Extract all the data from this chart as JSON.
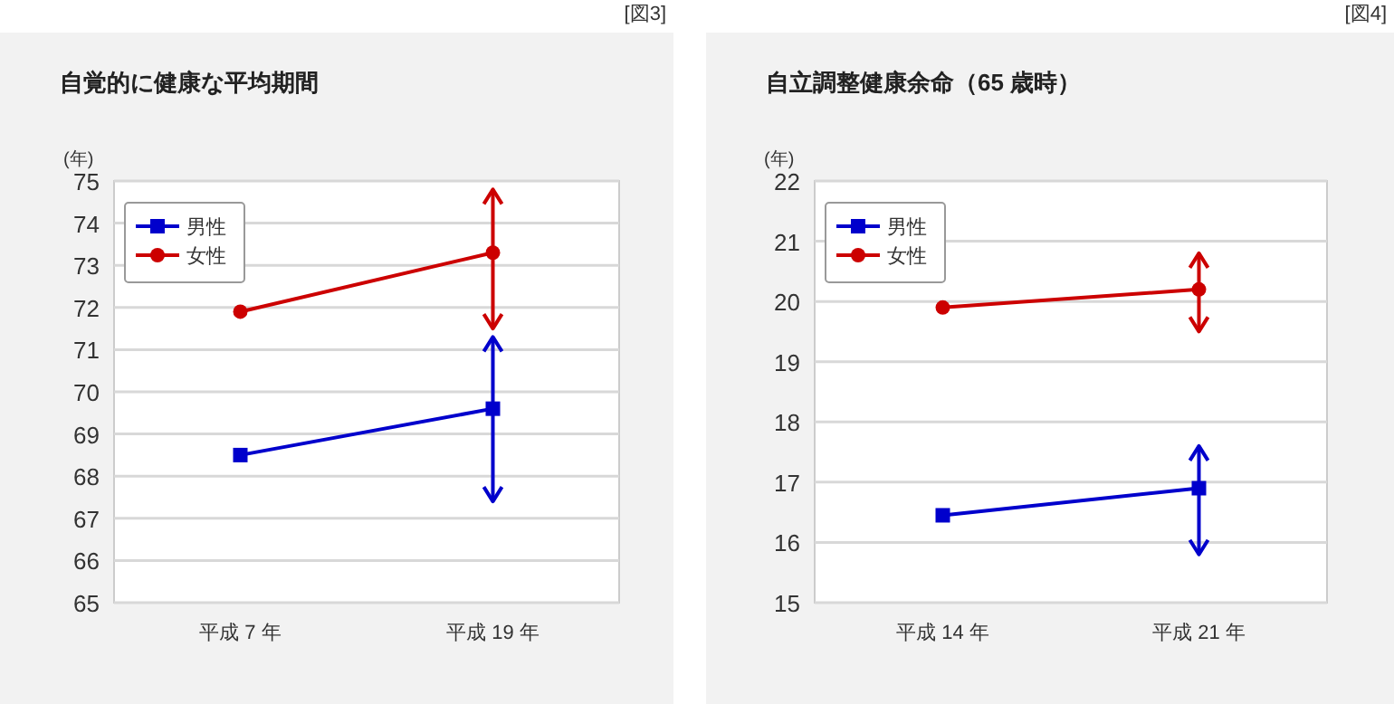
{
  "chart_data": [
    {
      "type": "line",
      "title": "自覚的に健康な平均期間",
      "ylabel": "(年)",
      "annotations": [
        "[図3]"
      ],
      "categories": [
        "平成 7 年",
        "平成 19 年"
      ],
      "ylim": [
        65,
        75
      ],
      "yticks": [
        65,
        66,
        67,
        68,
        69,
        70,
        71,
        72,
        73,
        74,
        75
      ],
      "grid": "y",
      "legend": "top left",
      "series": [
        {
          "name": "男性",
          "color": "#0000cc",
          "marker": "square",
          "values": [
            68.5,
            69.6
          ],
          "errors": [
            null,
            [
              67.4,
              71.3
            ]
          ]
        },
        {
          "name": "女性",
          "color": "#cc0000",
          "marker": "circle",
          "values": [
            71.9,
            73.3
          ],
          "errors": [
            null,
            [
              71.5,
              74.8
            ]
          ]
        }
      ]
    },
    {
      "type": "line",
      "title": "自立調整健康余命（65 歳時）",
      "ylabel": "(年)",
      "annotations": [
        "[図4]"
      ],
      "categories": [
        "平成 14 年",
        "平成 21 年"
      ],
      "ylim": [
        15,
        22
      ],
      "yticks": [
        15,
        16,
        17,
        18,
        19,
        20,
        21,
        22
      ],
      "grid": "y",
      "legend": "top left",
      "series": [
        {
          "name": "男性",
          "color": "#0000cc",
          "marker": "square",
          "values": [
            16.45,
            16.9
          ],
          "errors": [
            null,
            [
              15.8,
              17.6
            ]
          ]
        },
        {
          "name": "女性",
          "color": "#cc0000",
          "marker": "circle",
          "values": [
            19.9,
            20.2
          ],
          "errors": [
            null,
            [
              19.5,
              20.8
            ]
          ]
        }
      ]
    }
  ]
}
